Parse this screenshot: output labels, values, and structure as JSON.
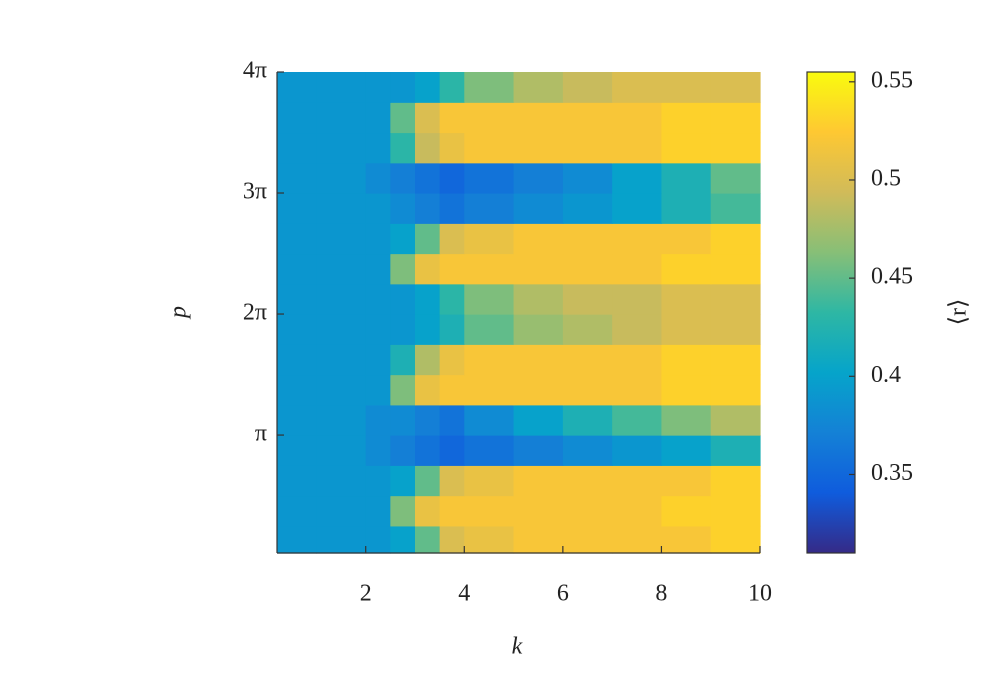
{
  "chart_data": {
    "type": "heatmap",
    "xlabel": "k",
    "ylabel": "p",
    "colorbar_label": "⟨r⟩",
    "x_edges": [
      0.2,
      1,
      2,
      2.5,
      3,
      3.5,
      4,
      5,
      6,
      7,
      8,
      9,
      10
    ],
    "y_edges": [
      0.08,
      0.785,
      1.571,
      2.356,
      3.142,
      3.927,
      4.712,
      5.498,
      6.283,
      7.069,
      7.854,
      8.639,
      9.425,
      10.21,
      10.996,
      11.781,
      12.566
    ],
    "z": [
      [
        0.39,
        0.39,
        0.39,
        0.4,
        0.45,
        0.5,
        0.51,
        0.52,
        0.52,
        0.52,
        0.52,
        0.53
      ],
      [
        0.39,
        0.39,
        0.39,
        0.46,
        0.51,
        0.52,
        0.52,
        0.52,
        0.52,
        0.52,
        0.53,
        0.53
      ],
      [
        0.39,
        0.39,
        0.39,
        0.4,
        0.45,
        0.5,
        0.51,
        0.52,
        0.52,
        0.52,
        0.52,
        0.53
      ],
      [
        0.39,
        0.39,
        0.38,
        0.37,
        0.36,
        0.35,
        0.36,
        0.37,
        0.38,
        0.39,
        0.4,
        0.42
      ],
      [
        0.39,
        0.39,
        0.38,
        0.38,
        0.37,
        0.36,
        0.38,
        0.4,
        0.42,
        0.44,
        0.46,
        0.48
      ],
      [
        0.39,
        0.39,
        0.39,
        0.46,
        0.51,
        0.52,
        0.52,
        0.52,
        0.52,
        0.52,
        0.53,
        0.53
      ],
      [
        0.39,
        0.39,
        0.39,
        0.42,
        0.48,
        0.51,
        0.52,
        0.52,
        0.52,
        0.52,
        0.53,
        0.53
      ],
      [
        0.39,
        0.39,
        0.39,
        0.39,
        0.4,
        0.42,
        0.45,
        0.47,
        0.48,
        0.49,
        0.5,
        0.5
      ],
      [
        0.39,
        0.39,
        0.39,
        0.39,
        0.4,
        0.43,
        0.46,
        0.48,
        0.49,
        0.49,
        0.5,
        0.5
      ],
      [
        0.39,
        0.39,
        0.39,
        0.46,
        0.51,
        0.52,
        0.52,
        0.52,
        0.52,
        0.52,
        0.53,
        0.53
      ],
      [
        0.39,
        0.39,
        0.39,
        0.4,
        0.45,
        0.5,
        0.51,
        0.52,
        0.52,
        0.52,
        0.52,
        0.53
      ],
      [
        0.39,
        0.39,
        0.39,
        0.38,
        0.37,
        0.36,
        0.37,
        0.38,
        0.39,
        0.4,
        0.42,
        0.44
      ],
      [
        0.39,
        0.39,
        0.38,
        0.37,
        0.36,
        0.35,
        0.36,
        0.37,
        0.38,
        0.4,
        0.42,
        0.45
      ],
      [
        0.39,
        0.39,
        0.39,
        0.43,
        0.49,
        0.51,
        0.52,
        0.52,
        0.52,
        0.52,
        0.53,
        0.53
      ],
      [
        0.39,
        0.39,
        0.39,
        0.45,
        0.5,
        0.52,
        0.52,
        0.52,
        0.52,
        0.52,
        0.53,
        0.53
      ],
      [
        0.39,
        0.39,
        0.39,
        0.39,
        0.4,
        0.43,
        0.46,
        0.48,
        0.49,
        0.5,
        0.5,
        0.5
      ]
    ],
    "xlim": [
      0.2,
      10
    ],
    "ylim": [
      0.08,
      12.566
    ],
    "xticks": [
      2,
      4,
      6,
      8,
      10
    ],
    "yticks": [
      {
        "value": 3.1416,
        "label": "π"
      },
      {
        "value": 6.2832,
        "label": "2π"
      },
      {
        "value": 9.4248,
        "label": "3π"
      },
      {
        "value": 12.566,
        "label": "4π"
      }
    ],
    "clim": [
      0.31,
      0.555
    ],
    "cticks": [
      0.35,
      0.4,
      0.45,
      0.5,
      0.55
    ],
    "colormap": [
      "#352a87",
      "#0f5cdd",
      "#1481d6",
      "#06a4ca",
      "#2eb7a4",
      "#87bf77",
      "#d1bb59",
      "#fec832",
      "#f9fb0e"
    ]
  }
}
